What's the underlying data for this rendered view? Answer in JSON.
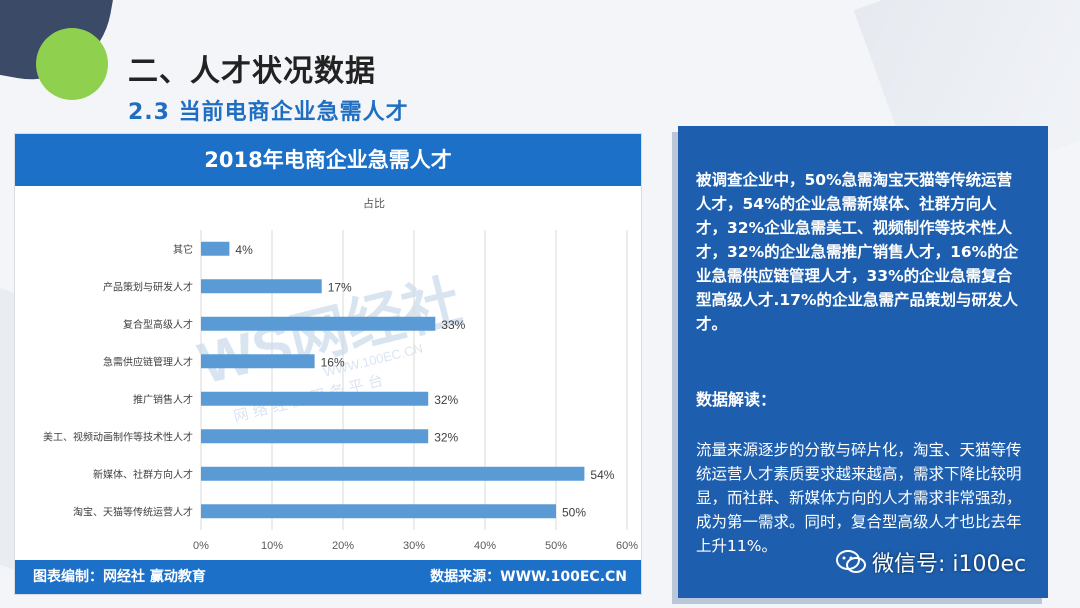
{
  "slide": {
    "title": "二、人才状况数据",
    "subtitle": "2.3  当前电商企业急需人才"
  },
  "chart_panel": {
    "header": "2018年电商企业急需人才",
    "footer_left": "图表编制：网经社 赢动教育",
    "footer_right": "数据来源：WWW.100EC.CN"
  },
  "chart_data": {
    "type": "bar",
    "orientation": "horizontal",
    "title": "占比",
    "categories": [
      "其它",
      "产品策划与研发人才",
      "复合型高级人才",
      "急需供应链管理人才",
      "推广销售人才",
      "美工、视频动画制作等技术性人才",
      "新媒体、社群方向人才",
      "淘宝、天猫等传统运营人才"
    ],
    "series": [
      {
        "values": [
          4,
          17,
          33,
          16,
          32,
          32,
          54,
          50
        ],
        "labels": [
          "4%",
          "17%",
          "33%",
          "16%",
          "32%",
          "32%",
          "54%",
          "50%"
        ]
      }
    ],
    "x_ticks": [
      "0%",
      "10%",
      "20%",
      "30%",
      "40%",
      "50%",
      "60%"
    ],
    "xlim": [
      0,
      60
    ],
    "grid": true,
    "bar_color": "#5b9bd5"
  },
  "watermark": {
    "logo_text": "WS网经社",
    "url": "WWW.100EC.CN",
    "tagline": "网 络 经 济 服 务 平 台"
  },
  "text_panel": {
    "para1": "被调查企业中，50%急需淘宝天猫等传统运营人才，54%的企业急需新媒体、社群方向人才，32%企业急需美工、视频制作等技术性人才，32%的企业急需推广销售人才，16%的企业急需供应链管理人才，33%的企业急需复合型高级人才.17%的企业急需产品策划与研发人才。",
    "heading": "数据解读：",
    "para2": "流量来源逐步的分散与碎片化，淘宝、天猫等传统运营人才素质要求越来越高，需求下降比较明显，而社群、新媒体方向的人才需求非常强劲，成为第一需求。同时，复合型高级人才也比去年上升11%。"
  },
  "overlay": {
    "wechat_text": "微信号: i100ec",
    "icon": "wechat-icon"
  },
  "colors": {
    "header_blue": "#1d70c8",
    "panel_blue": "#1d5fae",
    "subtitle_blue": "#1f6ec1",
    "accent_green": "#8fd14f"
  }
}
